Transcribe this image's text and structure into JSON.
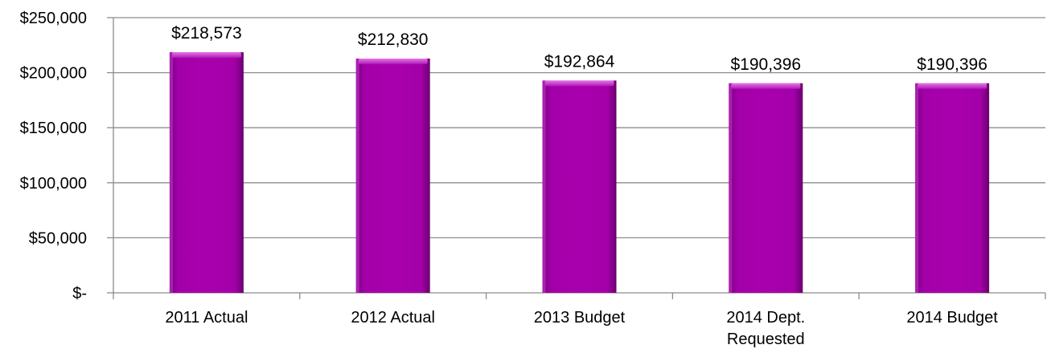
{
  "chart_data": {
    "type": "bar",
    "categories": [
      [
        "2011 Actual"
      ],
      [
        "2012 Actual"
      ],
      [
        "2013 Budget"
      ],
      [
        "2014 Dept.",
        "Requested"
      ],
      [
        "2014 Budget"
      ]
    ],
    "values": [
      218573,
      212830,
      192864,
      190396,
      190396
    ],
    "data_labels": [
      "$218,573",
      "$212,830",
      "$192,864",
      "$190,396",
      "$190,396"
    ],
    "y_ticks": [
      0,
      50000,
      100000,
      150000,
      200000,
      250000
    ],
    "y_tick_labels": [
      "$-",
      "$50,000",
      "$100,000",
      "$150,000",
      "$200,000",
      "$250,000"
    ],
    "ylim": [
      0,
      250000
    ],
    "grid": true,
    "legend": "none",
    "colors": {
      "bar_fill": "#a400a8",
      "bar_light": "#d24ad6",
      "bar_dark": "#6e0072",
      "gridline": "#8c8c8c",
      "axis": "#8c8c8c"
    }
  }
}
